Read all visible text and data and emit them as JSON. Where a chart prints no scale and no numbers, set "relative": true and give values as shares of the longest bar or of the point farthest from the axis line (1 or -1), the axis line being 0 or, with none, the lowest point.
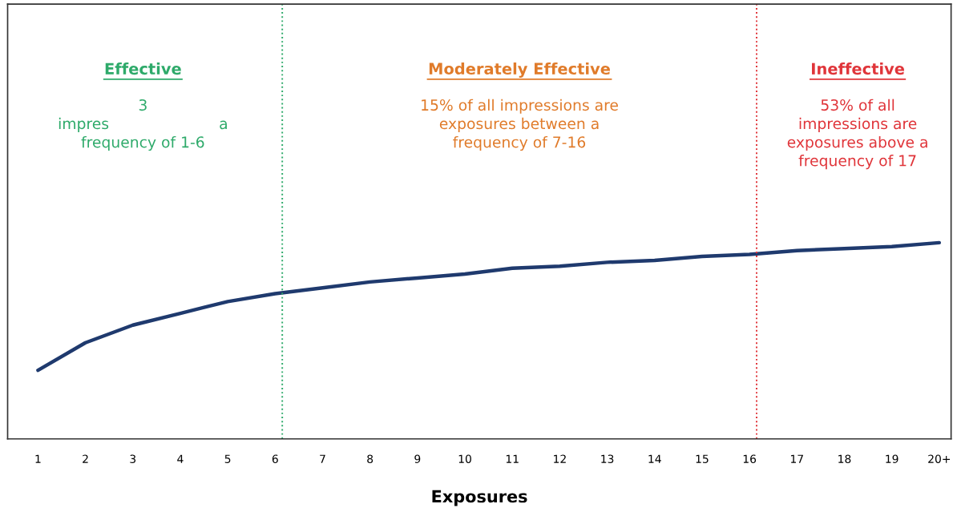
{
  "chart_data": {
    "type": "line",
    "relative": true,
    "xlabel": "Exposures",
    "categories": [
      "1",
      "2",
      "3",
      "4",
      "5",
      "6",
      "7",
      "8",
      "9",
      "10",
      "11",
      "12",
      "13",
      "14",
      "15",
      "16",
      "17",
      "18",
      "19",
      "20+"
    ],
    "series": [
      {
        "color": "#1f3a6e",
        "values": [
          0.35,
          0.49,
          0.58,
          0.64,
          0.7,
          0.74,
          0.77,
          0.8,
          0.82,
          0.84,
          0.87,
          0.88,
          0.9,
          0.91,
          0.93,
          0.94,
          0.96,
          0.97,
          0.98,
          1.0
        ]
      }
    ],
    "ref_lines": [
      {
        "axis": "x",
        "value": "6",
        "color": "#2eaa6a",
        "line_style": "dotted"
      },
      {
        "axis": "x",
        "value": "16",
        "color": "#e0353a",
        "line_style": "dotted"
      }
    ],
    "annotations": [
      "Effective",
      "3\nimpres                       a\nfrequency of 1-6",
      "Moderately Effective",
      "15% of all impressions are\nexposures between a\nfrequency of 7-16",
      "Ineffective",
      "53% of all\nimpressions are\nexposures above a\nfrequency of 17"
    ],
    "marker": "none",
    "line_style": "solid",
    "grid": false,
    "legend": false
  }
}
